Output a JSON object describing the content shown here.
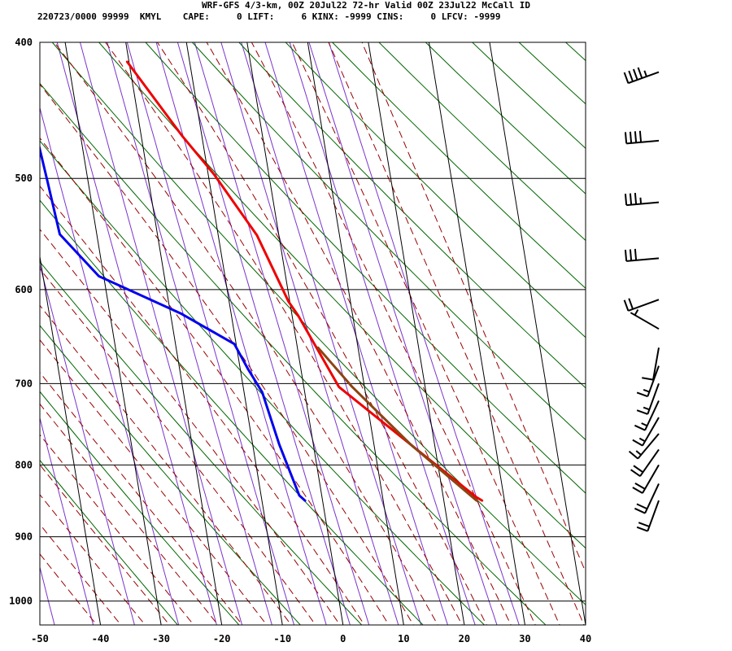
{
  "header": {
    "title": "WRF-GFS 4/3-km, 00Z 20Jul22 72-hr Valid 00Z 23Jul22 McCall ID",
    "info": "220723/0000 99999  KMYL    CAPE:     0 LIFT:     6 KINX: -9999 CINS:     0 LFCV: -9999"
  },
  "colors": {
    "temperature": "#ee0000",
    "dewpoint": "#0000ee",
    "parcel": "#8b4513",
    "isotherm": "#000000",
    "dry_adiabat": "#006600",
    "moist_adiabat": "#990000",
    "mixing_ratio": "#7a33cc",
    "wind_barb": "#000000"
  },
  "chart_data": {
    "type": "line",
    "subtype": "skew-T log-P sounding",
    "x_ticks": [
      -50,
      -40,
      -30,
      -20,
      -10,
      0,
      10,
      20,
      30,
      40
    ],
    "x_tick_labels": [
      "-50",
      "-40",
      "-30",
      "-20",
      "-10",
      "0",
      "10",
      "20",
      "30",
      "40"
    ],
    "y_ticks": [
      400,
      500,
      600,
      700,
      800,
      900,
      1000
    ],
    "y_tick_labels": [
      "400",
      "500",
      "600",
      "700",
      "800",
      "900",
      "1000"
    ],
    "xlim": [
      -50,
      40
    ],
    "ylim": [
      1040,
      400
    ],
    "y_scale": "log",
    "grid": true,
    "series": [
      {
        "key": "temperature",
        "points": [
          [
            26.3,
            848
          ],
          [
            25.4,
            843
          ],
          [
            16.1,
            774
          ],
          [
            5.8,
            704
          ],
          [
            1.0,
            626
          ],
          [
            -0.2,
            612
          ],
          [
            -3.6,
            549
          ],
          [
            -9.0,
            497
          ],
          [
            -13.3,
            466
          ],
          [
            -20.3,
            413
          ]
        ]
      },
      {
        "key": "dewpoint",
        "points": [
          [
            -2.9,
            848
          ],
          [
            -3.7,
            841
          ],
          [
            -5.6,
            774
          ],
          [
            -7.0,
            710
          ],
          [
            -8.7,
            684
          ],
          [
            -10.3,
            656
          ],
          [
            -18.3,
            624
          ],
          [
            -30.8,
            587
          ],
          [
            -36.1,
            548
          ],
          [
            -36.7,
            502
          ],
          [
            -37.4,
            457
          ],
          [
            -38.5,
            413
          ]
        ]
      },
      {
        "key": "parcel",
        "points": [
          [
            25.4,
            848
          ],
          [
            16.1,
            774
          ],
          [
            8.0,
            704
          ],
          [
            3.4,
            660
          ]
        ]
      }
    ],
    "wind_barbs": [
      {
        "p": 848,
        "dir": 200,
        "spd": 20
      },
      {
        "p": 825,
        "dir": 205,
        "spd": 20
      },
      {
        "p": 800,
        "dir": 210,
        "spd": 20
      },
      {
        "p": 780,
        "dir": 215,
        "spd": 20
      },
      {
        "p": 760,
        "dir": 220,
        "spd": 15
      },
      {
        "p": 740,
        "dir": 210,
        "spd": 15
      },
      {
        "p": 720,
        "dir": 205,
        "spd": 15
      },
      {
        "p": 700,
        "dir": 200,
        "spd": 15
      },
      {
        "p": 680,
        "dir": 200,
        "spd": 15
      },
      {
        "p": 660,
        "dir": 190,
        "spd": 10
      },
      {
        "p": 640,
        "dir": 300,
        "spd": 5
      },
      {
        "p": 610,
        "dir": 250,
        "spd": 20
      },
      {
        "p": 570,
        "dir": 265,
        "spd": 30
      },
      {
        "p": 520,
        "dir": 265,
        "spd": 35
      },
      {
        "p": 470,
        "dir": 265,
        "spd": 40
      },
      {
        "p": 420,
        "dir": 250,
        "spd": 45
      }
    ]
  }
}
